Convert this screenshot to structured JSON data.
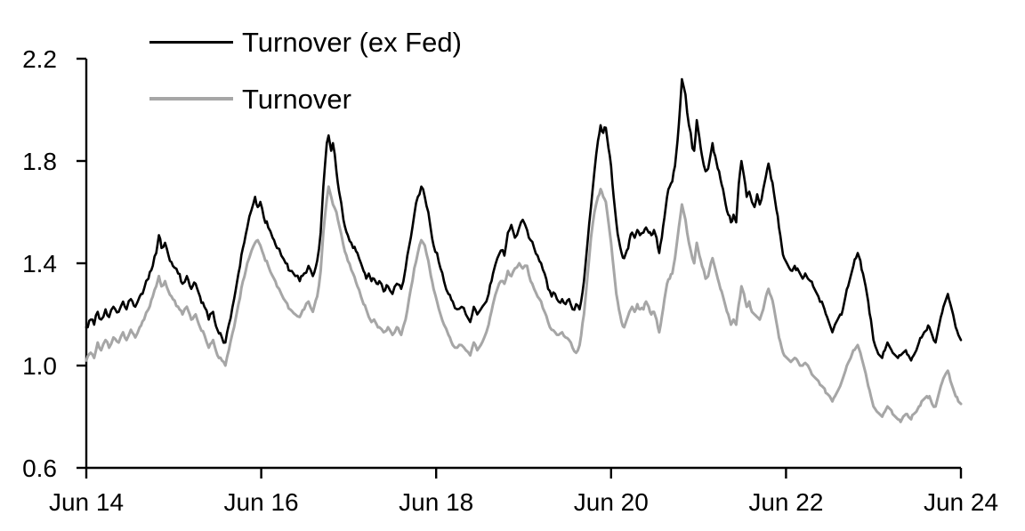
{
  "chart_data": {
    "type": "line",
    "title": "",
    "xlabel": "",
    "ylabel": "",
    "grid": false,
    "legend_position": "top-left-inside",
    "ylim": [
      0.6,
      2.2
    ],
    "y_ticks": [
      0.6,
      1.0,
      1.4,
      1.8,
      2.2
    ],
    "y_tick_labels": [
      "0.6",
      "1.0",
      "1.4",
      "1.8",
      "2.2"
    ],
    "x_range_years": [
      0,
      10
    ],
    "x_tick_positions_years": [
      0,
      2,
      4,
      6,
      8,
      10
    ],
    "x_tick_labels": [
      "Jun 14",
      "Jun 16",
      "Jun 18",
      "Jun 20",
      "Jun 22",
      "Jun 24"
    ],
    "axis_color": "#000000",
    "t": [
      0.0,
      0.05,
      0.09,
      0.13,
      0.17,
      0.22,
      0.26,
      0.31,
      0.37,
      0.42,
      0.46,
      0.51,
      0.56,
      0.61,
      0.66,
      0.71,
      0.76,
      0.8,
      0.83,
      0.86,
      0.9,
      0.94,
      0.99,
      1.05,
      1.1,
      1.15,
      1.2,
      1.25,
      1.3,
      1.35,
      1.4,
      1.45,
      1.5,
      1.55,
      1.59,
      1.63,
      1.69,
      1.74,
      1.79,
      1.84,
      1.89,
      1.93,
      1.96,
      1.99,
      2.03,
      2.08,
      2.13,
      2.18,
      2.23,
      2.28,
      2.33,
      2.39,
      2.44,
      2.49,
      2.54,
      2.59,
      2.64,
      2.68,
      2.71,
      2.75,
      2.77,
      2.8,
      2.82,
      2.86,
      2.89,
      2.94,
      2.99,
      3.05,
      3.1,
      3.14,
      3.17,
      3.2,
      3.23,
      3.26,
      3.29,
      3.32,
      3.35,
      3.4,
      3.45,
      3.5,
      3.55,
      3.6,
      3.65,
      3.71,
      3.75,
      3.79,
      3.83,
      3.87,
      3.91,
      3.94,
      3.97,
      4.01,
      4.05,
      4.09,
      4.14,
      4.19,
      4.24,
      4.29,
      4.34,
      4.39,
      4.43,
      4.47,
      4.51,
      4.55,
      4.6,
      4.65,
      4.7,
      4.74,
      4.78,
      4.82,
      4.86,
      4.9,
      4.95,
      4.99,
      5.04,
      5.08,
      5.12,
      5.16,
      5.2,
      5.24,
      5.28,
      5.32,
      5.36,
      5.4,
      5.44,
      5.48,
      5.52,
      5.56,
      5.6,
      5.64,
      5.69,
      5.73,
      5.77,
      5.81,
      5.85,
      5.88,
      5.91,
      5.94,
      5.97,
      6.0,
      6.03,
      6.06,
      6.09,
      6.12,
      6.15,
      6.18,
      6.21,
      6.24,
      6.27,
      6.3,
      6.33,
      6.37,
      6.4,
      6.43,
      6.46,
      6.49,
      6.52,
      6.55,
      6.58,
      6.61,
      6.64,
      6.67,
      6.7,
      6.73,
      6.76,
      6.79,
      6.81,
      6.83,
      6.85,
      6.87,
      6.89,
      6.91,
      6.93,
      6.95,
      6.98,
      7.01,
      7.04,
      7.08,
      7.11,
      7.14,
      7.16,
      7.19,
      7.22,
      7.25,
      7.28,
      7.31,
      7.34,
      7.37,
      7.4,
      7.43,
      7.46,
      7.49,
      7.52,
      7.55,
      7.58,
      7.61,
      7.64,
      7.67,
      7.7,
      7.74,
      7.77,
      7.8,
      7.83,
      7.86,
      7.89,
      7.92,
      7.95,
      7.98,
      8.01,
      8.04,
      8.07,
      8.1,
      8.13,
      8.16,
      8.19,
      8.22,
      8.25,
      8.28,
      8.31,
      8.34,
      8.37,
      8.41,
      8.44,
      8.47,
      8.5,
      8.53,
      8.56,
      8.59,
      8.62,
      8.65,
      8.68,
      8.71,
      8.74,
      8.77,
      8.8,
      8.82,
      8.85,
      8.88,
      8.91,
      8.94,
      8.97,
      9.0,
      9.04,
      9.07,
      9.1,
      9.13,
      9.16,
      9.19,
      9.22,
      9.25,
      9.28,
      9.31,
      9.34,
      9.37,
      9.4,
      9.43,
      9.46,
      9.49,
      9.52,
      9.55,
      9.58,
      9.61,
      9.64,
      9.67,
      9.71,
      9.74,
      9.77,
      9.8,
      9.83,
      9.85,
      9.88,
      9.91,
      9.94,
      9.97,
      10.0
    ],
    "series": [
      {
        "name": "Turnover (ex Fed)",
        "color": "#000000",
        "width": 2.6,
        "jitter": 0.012,
        "values": [
          1.15,
          1.18,
          1.16,
          1.21,
          1.18,
          1.22,
          1.19,
          1.23,
          1.21,
          1.25,
          1.22,
          1.26,
          1.23,
          1.27,
          1.3,
          1.34,
          1.39,
          1.44,
          1.51,
          1.46,
          1.48,
          1.43,
          1.39,
          1.36,
          1.32,
          1.35,
          1.3,
          1.32,
          1.27,
          1.23,
          1.18,
          1.21,
          1.14,
          1.11,
          1.09,
          1.16,
          1.26,
          1.36,
          1.46,
          1.54,
          1.61,
          1.66,
          1.62,
          1.64,
          1.58,
          1.54,
          1.5,
          1.46,
          1.43,
          1.4,
          1.37,
          1.35,
          1.33,
          1.36,
          1.39,
          1.35,
          1.41,
          1.52,
          1.7,
          1.87,
          1.9,
          1.84,
          1.87,
          1.76,
          1.68,
          1.57,
          1.51,
          1.46,
          1.44,
          1.4,
          1.37,
          1.34,
          1.36,
          1.33,
          1.34,
          1.32,
          1.33,
          1.29,
          1.31,
          1.28,
          1.32,
          1.3,
          1.38,
          1.5,
          1.59,
          1.66,
          1.7,
          1.66,
          1.6,
          1.53,
          1.47,
          1.44,
          1.38,
          1.33,
          1.28,
          1.25,
          1.22,
          1.23,
          1.2,
          1.17,
          1.23,
          1.2,
          1.22,
          1.24,
          1.28,
          1.36,
          1.42,
          1.45,
          1.43,
          1.52,
          1.55,
          1.5,
          1.54,
          1.57,
          1.53,
          1.49,
          1.46,
          1.43,
          1.4,
          1.36,
          1.3,
          1.27,
          1.28,
          1.25,
          1.26,
          1.24,
          1.26,
          1.22,
          1.24,
          1.22,
          1.33,
          1.48,
          1.62,
          1.76,
          1.88,
          1.94,
          1.91,
          1.93,
          1.85,
          1.78,
          1.66,
          1.56,
          1.49,
          1.44,
          1.42,
          1.45,
          1.49,
          1.52,
          1.5,
          1.53,
          1.51,
          1.52,
          1.54,
          1.52,
          1.51,
          1.53,
          1.5,
          1.44,
          1.5,
          1.58,
          1.66,
          1.7,
          1.72,
          1.78,
          1.88,
          2.02,
          2.12,
          2.09,
          2.06,
          1.99,
          1.94,
          1.91,
          1.85,
          1.84,
          1.96,
          1.89,
          1.82,
          1.76,
          1.77,
          1.83,
          1.87,
          1.82,
          1.77,
          1.73,
          1.69,
          1.63,
          1.59,
          1.56,
          1.59,
          1.56,
          1.71,
          1.8,
          1.74,
          1.66,
          1.68,
          1.64,
          1.62,
          1.67,
          1.63,
          1.69,
          1.74,
          1.79,
          1.73,
          1.68,
          1.61,
          1.54,
          1.47,
          1.42,
          1.4,
          1.38,
          1.37,
          1.39,
          1.38,
          1.36,
          1.34,
          1.36,
          1.34,
          1.33,
          1.31,
          1.29,
          1.27,
          1.25,
          1.22,
          1.19,
          1.16,
          1.13,
          1.16,
          1.18,
          1.2,
          1.22,
          1.27,
          1.31,
          1.35,
          1.39,
          1.42,
          1.44,
          1.41,
          1.36,
          1.31,
          1.25,
          1.18,
          1.1,
          1.06,
          1.04,
          1.03,
          1.06,
          1.09,
          1.07,
          1.05,
          1.04,
          1.03,
          1.04,
          1.05,
          1.06,
          1.04,
          1.02,
          1.04,
          1.06,
          1.09,
          1.11,
          1.13,
          1.14,
          1.15,
          1.12,
          1.09,
          1.14,
          1.19,
          1.23,
          1.26,
          1.28,
          1.24,
          1.2,
          1.15,
          1.12,
          1.1
        ]
      },
      {
        "name": "Turnover",
        "color": "#a6a6a6",
        "width": 3.0,
        "jitter": 0.007,
        "values": [
          1.02,
          1.05,
          1.03,
          1.09,
          1.06,
          1.1,
          1.07,
          1.11,
          1.09,
          1.13,
          1.1,
          1.14,
          1.11,
          1.15,
          1.18,
          1.22,
          1.27,
          1.31,
          1.35,
          1.31,
          1.33,
          1.29,
          1.26,
          1.23,
          1.2,
          1.23,
          1.18,
          1.2,
          1.15,
          1.12,
          1.07,
          1.1,
          1.04,
          1.02,
          1.0,
          1.06,
          1.15,
          1.24,
          1.33,
          1.4,
          1.45,
          1.48,
          1.49,
          1.47,
          1.43,
          1.39,
          1.35,
          1.31,
          1.28,
          1.25,
          1.22,
          1.2,
          1.19,
          1.22,
          1.25,
          1.21,
          1.27,
          1.37,
          1.52,
          1.65,
          1.7,
          1.66,
          1.63,
          1.6,
          1.55,
          1.47,
          1.41,
          1.36,
          1.31,
          1.27,
          1.24,
          1.22,
          1.19,
          1.17,
          1.18,
          1.16,
          1.15,
          1.13,
          1.15,
          1.12,
          1.15,
          1.12,
          1.18,
          1.3,
          1.38,
          1.44,
          1.49,
          1.47,
          1.41,
          1.35,
          1.3,
          1.25,
          1.2,
          1.16,
          1.12,
          1.08,
          1.07,
          1.08,
          1.06,
          1.04,
          1.09,
          1.06,
          1.08,
          1.11,
          1.16,
          1.24,
          1.3,
          1.33,
          1.32,
          1.37,
          1.35,
          1.38,
          1.4,
          1.38,
          1.39,
          1.33,
          1.3,
          1.27,
          1.25,
          1.21,
          1.17,
          1.14,
          1.13,
          1.12,
          1.13,
          1.11,
          1.1,
          1.07,
          1.05,
          1.08,
          1.2,
          1.35,
          1.5,
          1.6,
          1.66,
          1.69,
          1.66,
          1.64,
          1.56,
          1.48,
          1.38,
          1.28,
          1.22,
          1.17,
          1.15,
          1.18,
          1.21,
          1.23,
          1.21,
          1.24,
          1.22,
          1.22,
          1.25,
          1.23,
          1.2,
          1.21,
          1.18,
          1.13,
          1.19,
          1.26,
          1.32,
          1.34,
          1.36,
          1.42,
          1.5,
          1.58,
          1.63,
          1.6,
          1.57,
          1.52,
          1.48,
          1.45,
          1.42,
          1.4,
          1.48,
          1.43,
          1.39,
          1.34,
          1.35,
          1.4,
          1.42,
          1.38,
          1.34,
          1.3,
          1.27,
          1.23,
          1.2,
          1.16,
          1.18,
          1.16,
          1.24,
          1.31,
          1.28,
          1.23,
          1.25,
          1.21,
          1.2,
          1.19,
          1.18,
          1.22,
          1.27,
          1.3,
          1.27,
          1.23,
          1.17,
          1.11,
          1.07,
          1.04,
          1.03,
          1.02,
          1.02,
          1.03,
          1.02,
          1.0,
          1.0,
          1.01,
          1.0,
          0.98,
          0.96,
          0.95,
          0.94,
          0.92,
          0.91,
          0.89,
          0.88,
          0.86,
          0.88,
          0.9,
          0.92,
          0.95,
          0.98,
          1.01,
          1.03,
          1.06,
          1.07,
          1.08,
          1.05,
          1.01,
          0.97,
          0.92,
          0.88,
          0.84,
          0.82,
          0.81,
          0.8,
          0.82,
          0.84,
          0.83,
          0.81,
          0.8,
          0.79,
          0.78,
          0.8,
          0.81,
          0.8,
          0.79,
          0.81,
          0.82,
          0.84,
          0.86,
          0.87,
          0.88,
          0.88,
          0.85,
          0.84,
          0.88,
          0.92,
          0.95,
          0.97,
          0.98,
          0.94,
          0.91,
          0.88,
          0.86,
          0.85
        ]
      }
    ]
  }
}
